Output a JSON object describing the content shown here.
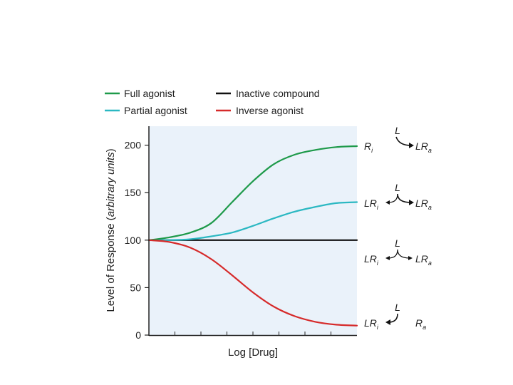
{
  "chart_data": {
    "type": "line",
    "xlabel": "Log [Drug]",
    "ylabel_main": "Level of Response (",
    "ylabel_italic": "arbitrary units",
    "ylabel_close": ")",
    "ylim": [
      0,
      220
    ],
    "y_ticks": [
      "0",
      "50",
      "100",
      "150",
      "200"
    ],
    "grid": false,
    "legend_position": "top",
    "colors": {
      "full": "#1e9a4a",
      "partial": "#2bb8c2",
      "inactive": "#111111",
      "inverse": "#d62a2a",
      "plot_bg": "#eaf2fa"
    },
    "series": [
      {
        "name": "Full agonist",
        "key": "full",
        "x": [
          0,
          0.1,
          0.2,
          0.3,
          0.4,
          0.5,
          0.6,
          0.7,
          0.8,
          0.9,
          1.0
        ],
        "values": [
          100,
          103,
          108,
          118,
          140,
          162,
          180,
          190,
          195,
          198,
          199
        ]
      },
      {
        "name": "Partial agonist",
        "key": "partial",
        "x": [
          0,
          0.1,
          0.2,
          0.3,
          0.4,
          0.5,
          0.6,
          0.7,
          0.8,
          0.9,
          1.0
        ],
        "values": [
          100,
          100,
          101,
          104,
          108,
          115,
          123,
          130,
          135,
          139,
          140
        ]
      },
      {
        "name": "Inactive compound",
        "key": "inactive",
        "x": [
          0,
          1.0
        ],
        "values": [
          100,
          100
        ]
      },
      {
        "name": "Inverse agonist",
        "key": "inverse",
        "x": [
          0,
          0.1,
          0.2,
          0.3,
          0.4,
          0.5,
          0.6,
          0.7,
          0.8,
          0.9,
          1.0
        ],
        "values": [
          100,
          98,
          92,
          80,
          63,
          45,
          30,
          20,
          14,
          11,
          10
        ]
      }
    ],
    "schemes": [
      {
        "key": "full",
        "left": "R",
        "left_sub": "i",
        "right": "LR",
        "right_sub": "a",
        "ligand": "L",
        "y": 200
      },
      {
        "key": "partial",
        "left": "LR",
        "left_sub": "i",
        "right": "LR",
        "right_sub": "a",
        "ligand": "L",
        "y": 140
      },
      {
        "key": "inactive",
        "left": "LR",
        "left_sub": "i",
        "right": "LR",
        "right_sub": "a",
        "ligand": "L",
        "y": 100
      },
      {
        "key": "inverse",
        "left": "LR",
        "left_sub": "i",
        "right": "R",
        "right_sub": "a",
        "ligand": "L",
        "y": 10
      }
    ]
  }
}
